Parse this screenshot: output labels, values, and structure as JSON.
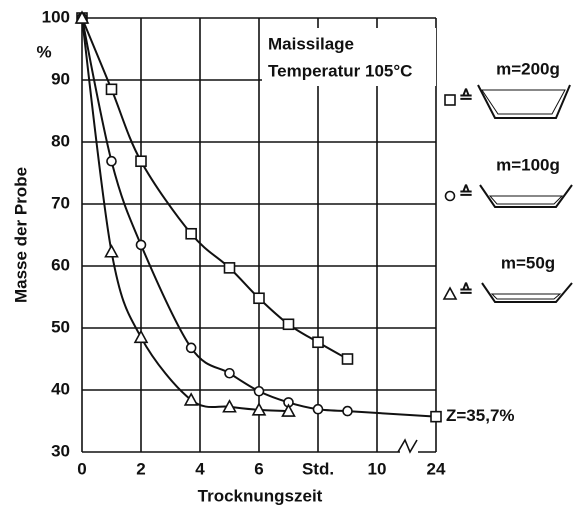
{
  "chart_data": {
    "type": "line",
    "title_lines": [
      "Maissilage",
      "Temperatur 105°C"
    ],
    "x_label": "Trocknungszeit",
    "y_label": "Masse der Probe",
    "y_unit": "%",
    "legend_symbol": "≙",
    "xlim": [
      0,
      24
    ],
    "x_break": [
      10,
      24
    ],
    "xticks": [
      0,
      2,
      4,
      6,
      {
        "value": 8,
        "label": "Std."
      },
      10,
      24
    ],
    "ylim": [
      30,
      100
    ],
    "yticks": [
      30,
      40,
      50,
      60,
      70,
      80,
      90,
      100
    ],
    "grid": true,
    "series": [
      {
        "name": "m=200g",
        "color": "#111111",
        "marker": "square",
        "x": [
          0,
          1,
          2,
          3.7,
          5,
          6,
          7,
          8,
          9
        ],
        "values": [
          100,
          88.5,
          76.9,
          65.2,
          59.7,
          54.8,
          50.6,
          47.7,
          45
        ]
      },
      {
        "name": "m=100g",
        "color": "#111111",
        "marker": "circle",
        "x": [
          0,
          1,
          2,
          3.7,
          5,
          6,
          7,
          8,
          9
        ],
        "values": [
          100,
          76.9,
          63.4,
          46.8,
          42.7,
          39.8,
          38,
          36.9,
          36.6
        ]
      },
      {
        "name": "m=50g",
        "color": "#111111",
        "marker": "triangle",
        "x": [
          0,
          1,
          2,
          3.7,
          5,
          6,
          7
        ],
        "values": [
          100,
          62.3,
          48.5,
          38.4,
          37.3,
          36.8,
          36.6
        ]
      }
    ],
    "z": {
      "x": 24,
      "value": 35.7,
      "label": "Z=35,7%"
    }
  }
}
